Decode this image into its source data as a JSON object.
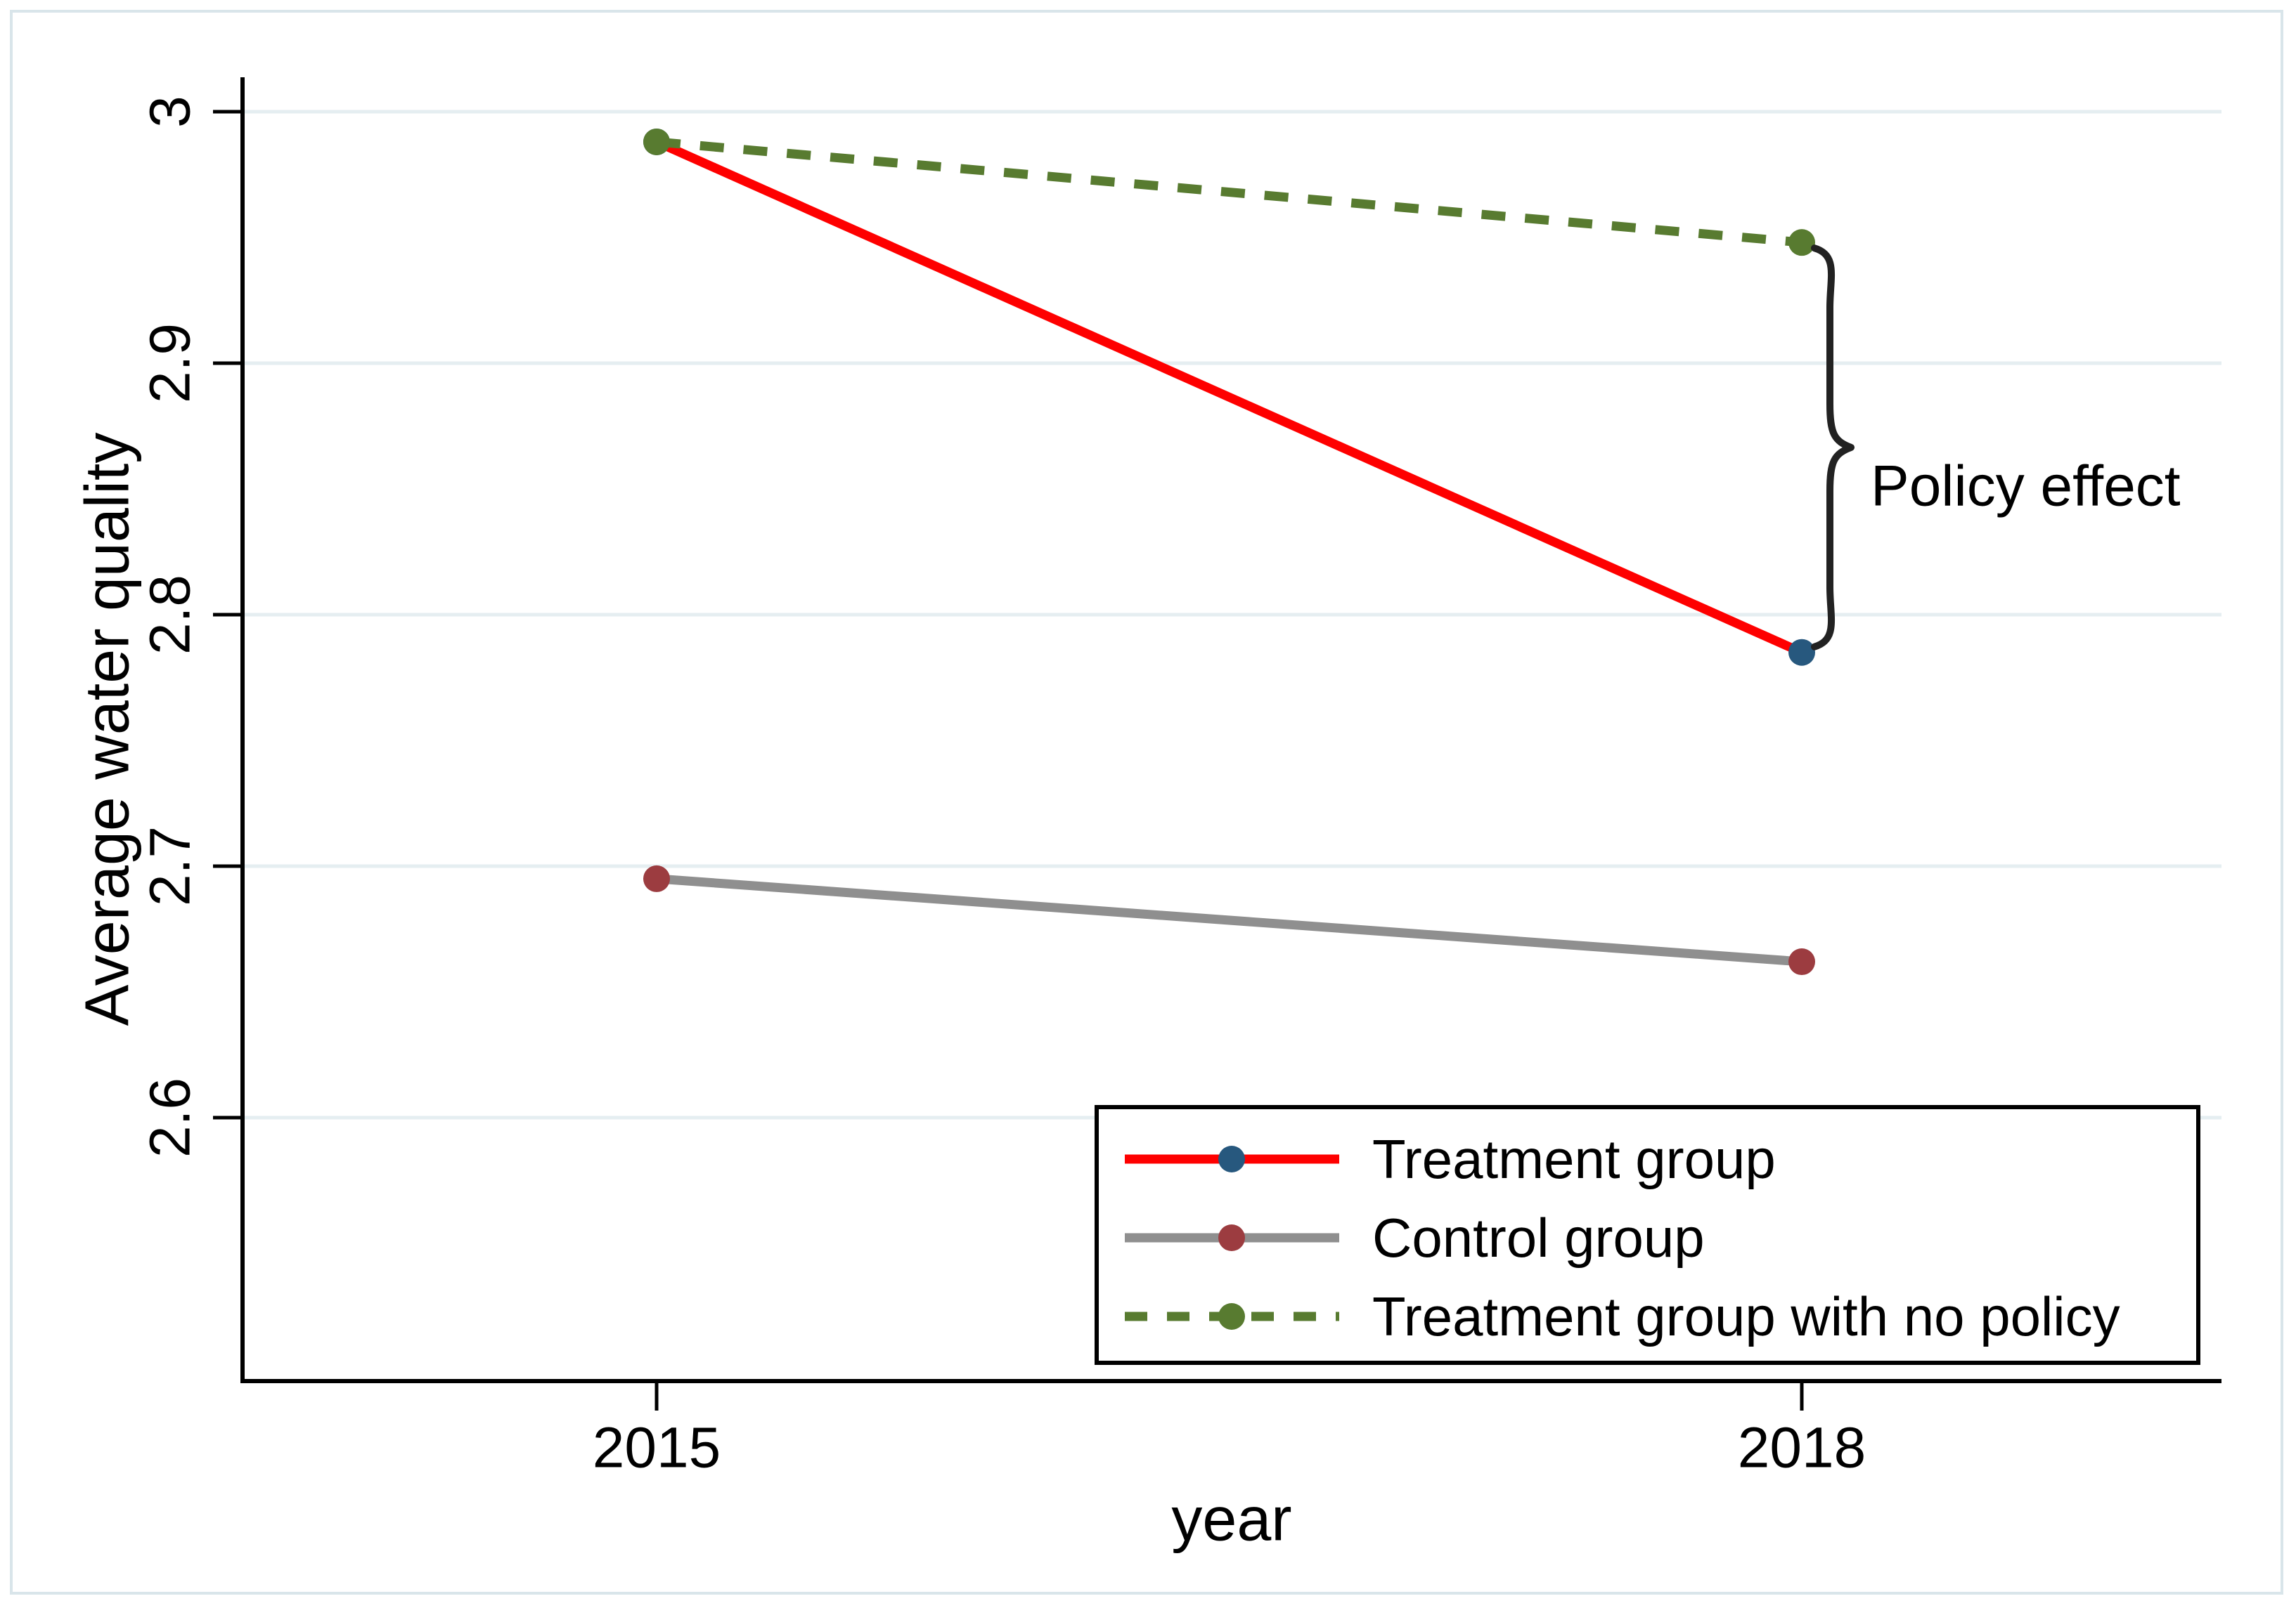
{
  "chart_data": {
    "type": "line",
    "title": "",
    "xlabel": "year",
    "ylabel": "Average water quality",
    "x": [
      2015,
      2018
    ],
    "x_tick_labels": [
      "2015",
      "2018"
    ],
    "y_ticks": [
      3,
      2.9,
      2.8,
      2.7,
      2.6
    ],
    "y_tick_labels": [
      "3",
      "2.9",
      "2.8",
      "2.7",
      "2.6"
    ],
    "ylim": [
      2.5,
      3.01
    ],
    "grid": true,
    "legend_position": "bottom-right",
    "series": [
      {
        "name": "Treatment group",
        "values": [
          2.988,
          2.785
        ],
        "line_color": "#fe0000",
        "marker_color": "#27587e",
        "style": "solid"
      },
      {
        "name": "Control group",
        "values": [
          2.695,
          2.662
        ],
        "line_color": "#8f8f8f",
        "marker_color": "#9c3c40",
        "style": "solid"
      },
      {
        "name": "Treatment group with no policy",
        "values": [
          2.988,
          2.948
        ],
        "line_color": "#587b30",
        "marker_color": "#587b30",
        "style": "dashed"
      }
    ],
    "annotation": {
      "label": "Policy effect",
      "at_x": 2018,
      "from_value": 2.948,
      "to_value": 2.785
    },
    "colors": {
      "gridline": "#e5eef1",
      "figure_border": "#d9e5ea",
      "axis": "#000000",
      "brace": "#222222",
      "legend_border": "#000000",
      "legend_fill": "#ffffff"
    }
  }
}
